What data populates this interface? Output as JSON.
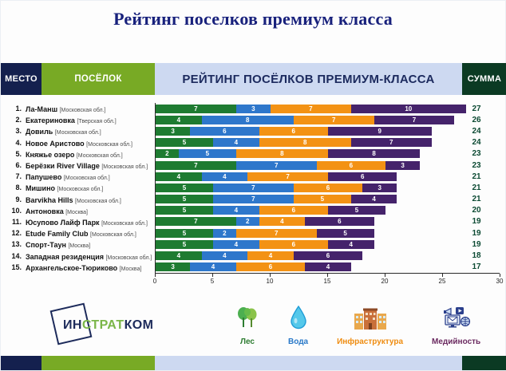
{
  "page_title": "Рейтинг поселков премиум класса",
  "table_header": {
    "place": "МЕСТО",
    "village": "ПОСЁЛОК",
    "rating": "РЕЙТИНГ ПОСЁЛКОВ ПРЕМИУМ-КЛАССА",
    "sum": "СУММА"
  },
  "chart_data": {
    "type": "bar",
    "orientation": "horizontal",
    "stacked": true,
    "ranks": [
      "1.",
      "2.",
      "3.",
      "4.",
      "5.",
      "6.",
      "7.",
      "8.",
      "9.",
      "10.",
      "11.",
      "12.",
      "13.",
      "14.",
      "15."
    ],
    "categories": [
      "Ла-Манш",
      "Екатериновка",
      "Довиль",
      "Новое Аристово",
      "Княжье озеро",
      "Берёзки River Village",
      "Папушево",
      "Мишино",
      "Barvikha Hills",
      "Антоновка",
      "Юсупово Лайф Парк",
      "Etude Family Club",
      "Спорт-Таун",
      "Западная резиденция",
      "Архангельское-Тюриково"
    ],
    "regions": [
      "[Московская обл.]",
      "[Тверская обл.]",
      "[Московская обл.]",
      "[Московская обл.]",
      "[Московская обл.]",
      "[Московская обл.]",
      "[Московская обл.]",
      "[Московская обл.]",
      "[Московская обл.]",
      "[Москва]",
      "[Московская обл.]",
      "[Московская обл.]",
      "[Москва]",
      "[Московская обл.]",
      "[Москва]"
    ],
    "series": [
      {
        "name": "Лес",
        "color": "#1e7b31",
        "values": [
          7,
          4,
          3,
          5,
          2,
          7,
          4,
          5,
          5,
          5,
          7,
          5,
          5,
          4,
          3
        ]
      },
      {
        "name": "Вода",
        "color": "#2e77cb",
        "values": [
          3,
          8,
          6,
          4,
          5,
          7,
          4,
          7,
          7,
          4,
          2,
          2,
          4,
          4,
          4
        ]
      },
      {
        "name": "Инфраструктура",
        "color": "#f39214",
        "values": [
          7,
          7,
          6,
          8,
          8,
          6,
          7,
          6,
          5,
          6,
          4,
          7,
          6,
          4,
          6
        ]
      },
      {
        "name": "Медийность",
        "color": "#45236b",
        "values": [
          10,
          7,
          9,
          7,
          8,
          3,
          6,
          3,
          4,
          5,
          6,
          5,
          4,
          6,
          4
        ]
      }
    ],
    "totals": [
      27,
      26,
      24,
      24,
      23,
      23,
      21,
      21,
      21,
      20,
      19,
      19,
      19,
      18,
      17
    ],
    "xlim": [
      0,
      30
    ],
    "x_ticks": [
      0,
      5,
      10,
      15,
      20,
      25,
      30
    ],
    "grid": false,
    "legend_position": "bottom"
  },
  "legend": [
    {
      "label": "Лес",
      "color": "#2e7d32"
    },
    {
      "label": "Вода",
      "color": "#2878c8"
    },
    {
      "label": "Инфраструктура",
      "color": "#ef8c10"
    },
    {
      "label": "Медийность",
      "color": "#6b2a60"
    }
  ],
  "logo": {
    "part1": "ИН",
    "part2": "СТРАТ",
    "part3": "КОМ"
  }
}
